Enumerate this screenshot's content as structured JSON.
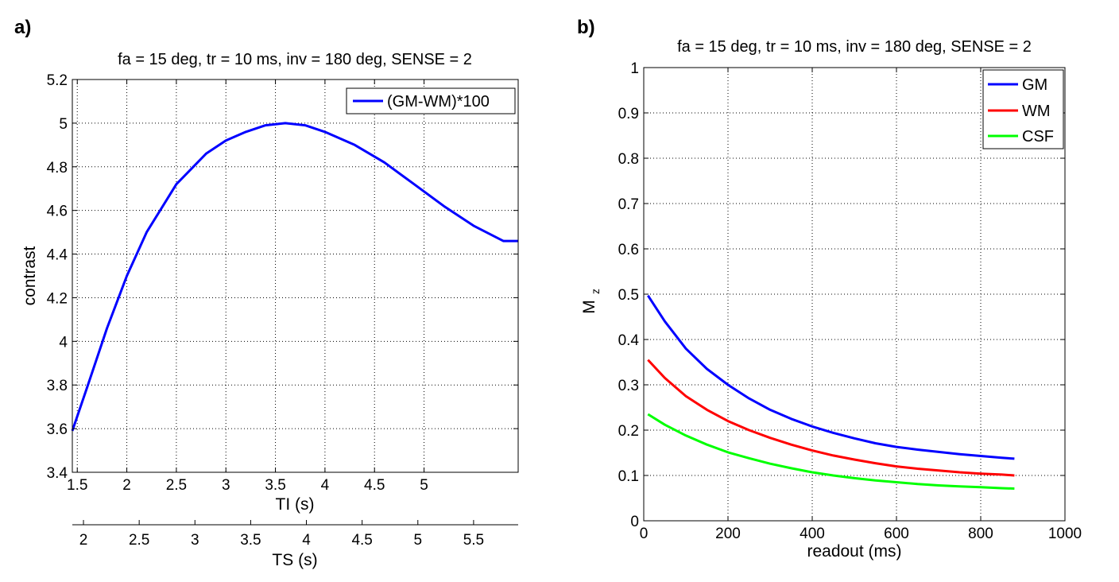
{
  "chart_data": [
    {
      "panel_label": "a)",
      "type": "line",
      "title": "fa = 15 deg, tr = 10 ms, inv = 180 deg, SENSE = 2",
      "xlabel": "TI (s)",
      "ylabel": "contrast",
      "xlim": [
        1.45,
        5.95
      ],
      "ylim": [
        3.4,
        5.2
      ],
      "xticks": [
        1.5,
        2,
        2.5,
        3,
        3.5,
        4,
        4.5,
        5
      ],
      "xtick_labels": [
        "1.5",
        "2",
        "2.5",
        "3",
        "3.5",
        "4",
        "4.5",
        "5"
      ],
      "yticks": [
        3.4,
        3.6,
        3.8,
        4,
        4.2,
        4.4,
        4.6,
        4.8,
        5,
        5.2
      ],
      "ytick_labels": [
        "3.4",
        "3.6",
        "3.8",
        "4",
        "4.2",
        "4.4",
        "4.6",
        "4.8",
        "5",
        "5.2"
      ],
      "secondary_xaxis": {
        "label": "TS (s)",
        "xlim": [
          1.9,
          5.9
        ],
        "ticks": [
          2,
          2.5,
          3,
          3.5,
          4,
          4.5,
          5,
          5.5
        ],
        "tick_labels": [
          "2",
          "2.5",
          "3",
          "3.5",
          "4",
          "4.5",
          "5",
          "5.5"
        ]
      },
      "grid": true,
      "legend_position": "top-right",
      "series": [
        {
          "name": "(GM-WM)*100",
          "color": "#0000ff",
          "x": [
            1.45,
            1.6,
            1.8,
            2.0,
            2.2,
            2.5,
            2.8,
            3.0,
            3.2,
            3.4,
            3.6,
            3.8,
            4.0,
            4.3,
            4.6,
            4.9,
            5.2,
            5.5,
            5.8,
            5.95
          ],
          "y": [
            3.59,
            3.79,
            4.06,
            4.3,
            4.5,
            4.72,
            4.86,
            4.92,
            4.96,
            4.99,
            5.0,
            4.99,
            4.96,
            4.9,
            4.82,
            4.72,
            4.62,
            4.53,
            4.46,
            4.46
          ]
        }
      ]
    },
    {
      "panel_label": "b)",
      "type": "line",
      "title": "fa = 15 deg, tr = 10 ms, inv = 180 deg, SENSE = 2",
      "xlabel": "readout (ms)",
      "ylabel": "M",
      "ylabel_subscript": "z",
      "xlim": [
        0,
        1000
      ],
      "ylim": [
        0,
        1
      ],
      "xticks": [
        0,
        200,
        400,
        600,
        800,
        1000
      ],
      "xtick_labels": [
        "0",
        "200",
        "400",
        "600",
        "800",
        "1000"
      ],
      "yticks": [
        0,
        0.1,
        0.2,
        0.3,
        0.4,
        0.5,
        0.6,
        0.7,
        0.8,
        0.9,
        1
      ],
      "ytick_labels": [
        "0",
        "0.1",
        "0.2",
        "0.3",
        "0.4",
        "0.5",
        "0.6",
        "0.7",
        "0.8",
        "0.9",
        "1"
      ],
      "grid": true,
      "legend_position": "top-right",
      "series": [
        {
          "name": "GM",
          "color": "#0000ff",
          "x": [
            10,
            50,
            100,
            150,
            200,
            250,
            300,
            350,
            400,
            450,
            500,
            550,
            600,
            650,
            700,
            750,
            800,
            850,
            880
          ],
          "y": [
            0.497,
            0.44,
            0.38,
            0.335,
            0.3,
            0.27,
            0.245,
            0.225,
            0.208,
            0.194,
            0.182,
            0.171,
            0.163,
            0.157,
            0.152,
            0.147,
            0.143,
            0.139,
            0.137
          ]
        },
        {
          "name": "WM",
          "color": "#ff0000",
          "x": [
            10,
            50,
            100,
            150,
            200,
            250,
            300,
            350,
            400,
            450,
            500,
            550,
            600,
            650,
            700,
            750,
            800,
            850,
            880
          ],
          "y": [
            0.355,
            0.315,
            0.275,
            0.245,
            0.22,
            0.2,
            0.183,
            0.168,
            0.155,
            0.144,
            0.135,
            0.127,
            0.12,
            0.115,
            0.111,
            0.107,
            0.104,
            0.102,
            0.1
          ]
        },
        {
          "name": "CSF",
          "color": "#00ff00",
          "x": [
            10,
            50,
            100,
            150,
            200,
            250,
            300,
            350,
            400,
            450,
            500,
            550,
            600,
            650,
            700,
            750,
            800,
            850,
            880
          ],
          "y": [
            0.235,
            0.212,
            0.188,
            0.168,
            0.151,
            0.138,
            0.126,
            0.116,
            0.107,
            0.1,
            0.094,
            0.089,
            0.085,
            0.081,
            0.078,
            0.076,
            0.074,
            0.072,
            0.071
          ]
        }
      ]
    }
  ]
}
